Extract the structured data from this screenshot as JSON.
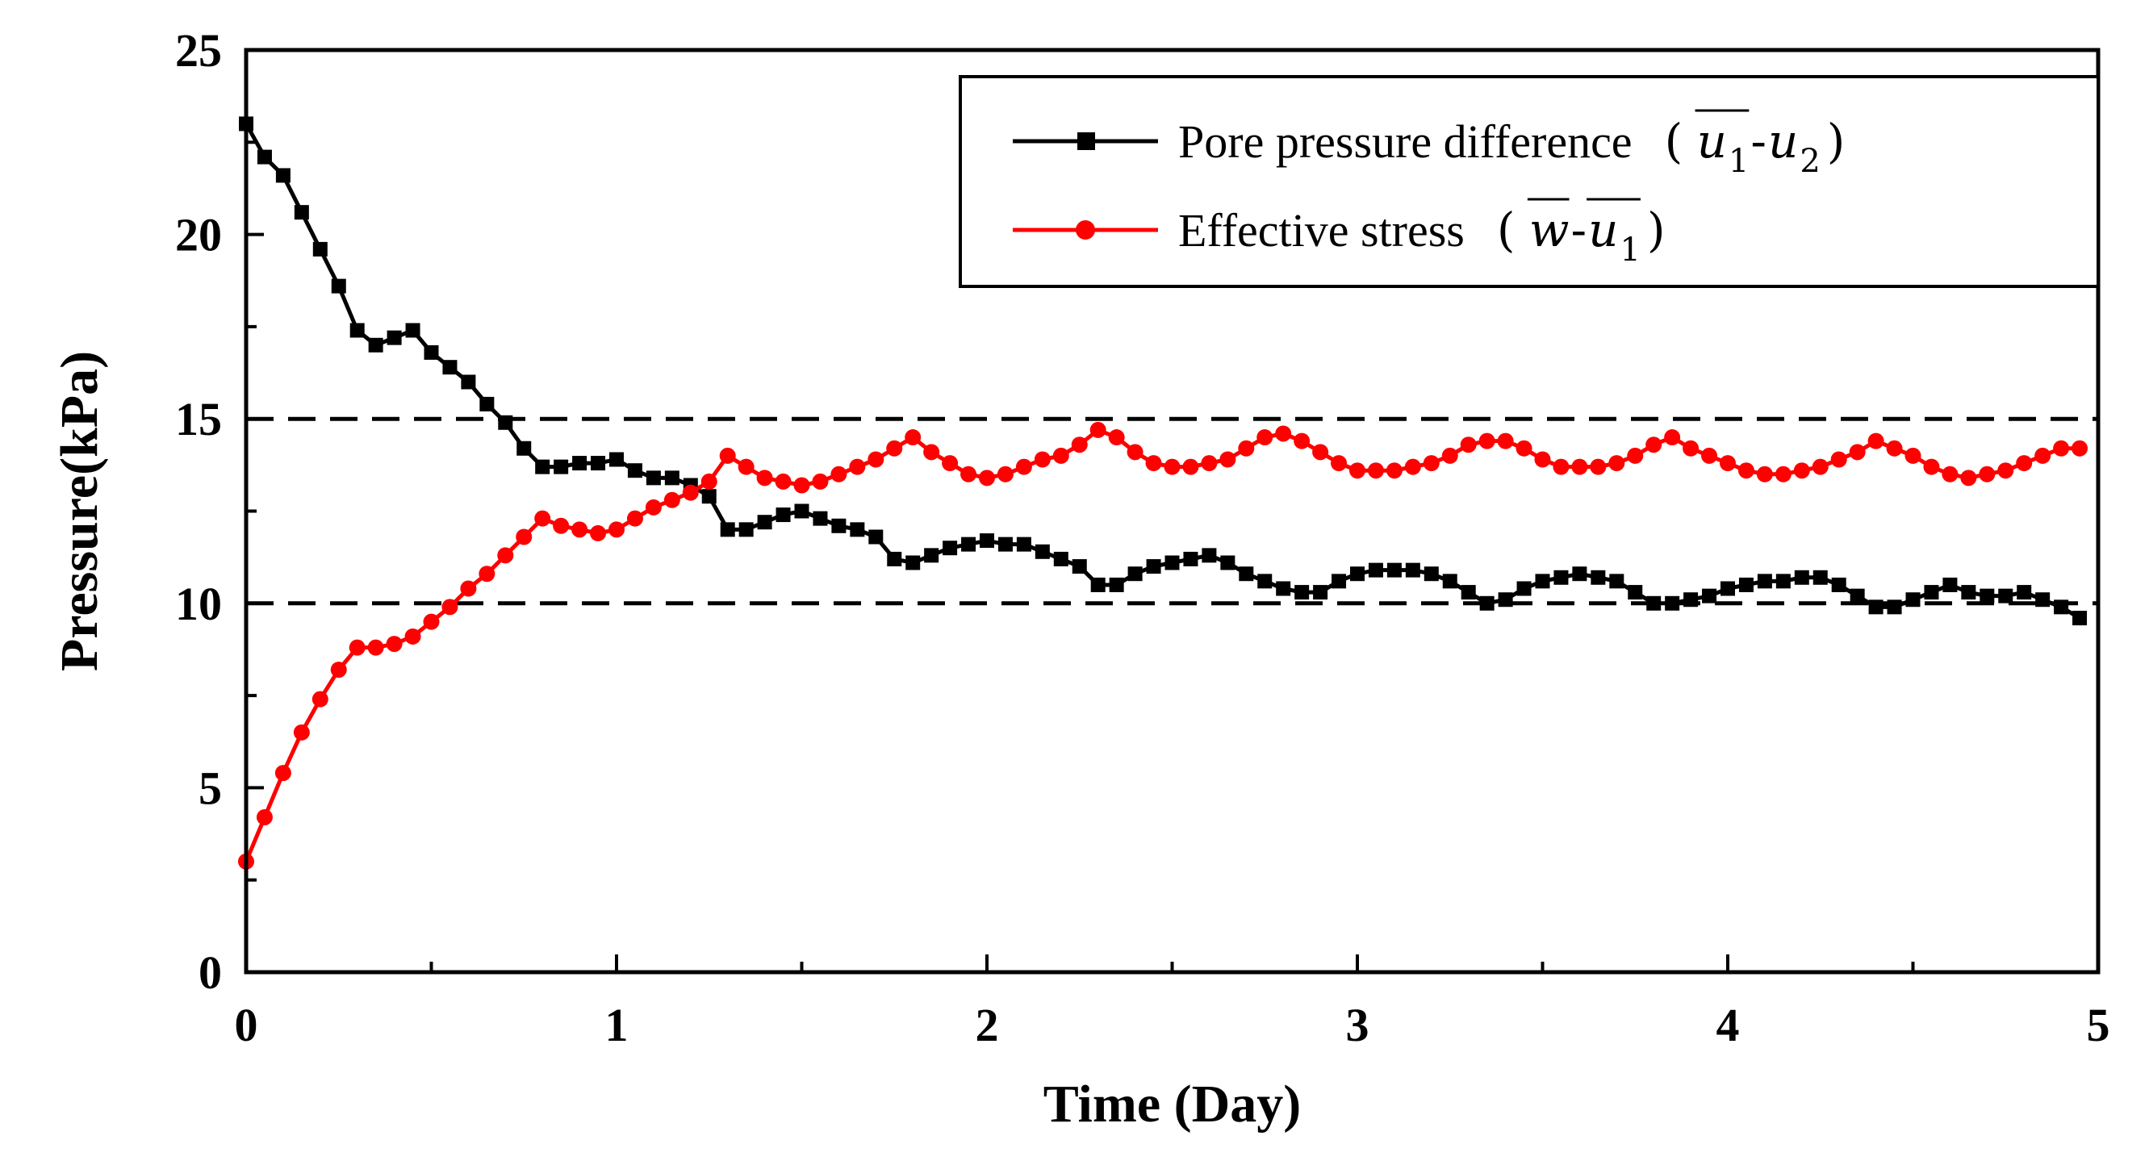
{
  "chart_data": {
    "type": "line",
    "title": "",
    "xlabel": "Time (Day)",
    "ylabel": "Pressure(kPa)",
    "xlim": [
      0,
      5
    ],
    "ylim": [
      0,
      25
    ],
    "x_ticks": [
      0,
      1,
      2,
      3,
      4,
      5
    ],
    "y_ticks": [
      0,
      5,
      10,
      15,
      20,
      25
    ],
    "x_tick_labels": [
      "0",
      "1",
      "2",
      "3",
      "4",
      "5"
    ],
    "y_tick_labels": [
      "0",
      "5",
      "10",
      "15",
      "20",
      "25"
    ],
    "reference_lines": [
      {
        "y": 15,
        "style": "dashed",
        "color": "#000000"
      },
      {
        "y": 10,
        "style": "dashed",
        "color": "#000000"
      }
    ],
    "legend_position": "top-right",
    "series": [
      {
        "name": "Pore pressure difference",
        "legend_label": "Pore pressure difference",
        "legend_formula": {
          "open": "(",
          "sym1": "u",
          "sub1": "1",
          "dash": "-",
          "sym2": "u",
          "sub2": "2",
          "close": ")"
        },
        "color": "#000000",
        "marker": "square",
        "x": [
          0.0,
          0.05,
          0.1,
          0.15,
          0.2,
          0.25,
          0.3,
          0.35,
          0.4,
          0.45,
          0.5,
          0.55,
          0.6,
          0.65,
          0.7,
          0.75,
          0.8,
          0.85,
          0.9,
          0.95,
          1.0,
          1.05,
          1.1,
          1.15,
          1.2,
          1.25,
          1.3,
          1.35,
          1.4,
          1.45,
          1.5,
          1.55,
          1.6,
          1.65,
          1.7,
          1.75,
          1.8,
          1.85,
          1.9,
          1.95,
          2.0,
          2.05,
          2.1,
          2.15,
          2.2,
          2.25,
          2.3,
          2.35,
          2.4,
          2.45,
          2.5,
          2.55,
          2.6,
          2.65,
          2.7,
          2.75,
          2.8,
          2.85,
          2.9,
          2.95,
          3.0,
          3.05,
          3.1,
          3.15,
          3.2,
          3.25,
          3.3,
          3.35,
          3.4,
          3.45,
          3.5,
          3.55,
          3.6,
          3.65,
          3.7,
          3.75,
          3.8,
          3.85,
          3.9,
          3.95,
          4.0,
          4.05,
          4.1,
          4.15,
          4.2,
          4.25,
          4.3,
          4.35,
          4.4,
          4.45,
          4.5,
          4.55,
          4.6,
          4.65,
          4.7,
          4.75,
          4.8,
          4.85,
          4.9,
          4.95
        ],
        "values": [
          23.0,
          22.1,
          21.6,
          20.6,
          19.6,
          18.6,
          17.4,
          17.0,
          17.2,
          17.4,
          16.8,
          16.4,
          16.0,
          15.4,
          14.9,
          14.2,
          13.7,
          13.7,
          13.8,
          13.8,
          13.9,
          13.6,
          13.4,
          13.4,
          13.2,
          12.9,
          12.0,
          12.0,
          12.2,
          12.4,
          12.5,
          12.3,
          12.1,
          12.0,
          11.8,
          11.2,
          11.1,
          11.3,
          11.5,
          11.6,
          11.7,
          11.6,
          11.6,
          11.4,
          11.2,
          11.0,
          10.5,
          10.5,
          10.8,
          11.0,
          11.1,
          11.2,
          11.3,
          11.1,
          10.8,
          10.6,
          10.4,
          10.3,
          10.3,
          10.6,
          10.8,
          10.9,
          10.9,
          10.9,
          10.8,
          10.6,
          10.3,
          10.0,
          10.1,
          10.4,
          10.6,
          10.7,
          10.8,
          10.7,
          10.6,
          10.3,
          10.0,
          10.0,
          10.1,
          10.2,
          10.4,
          10.5,
          10.6,
          10.6,
          10.7,
          10.7,
          10.5,
          10.2,
          9.9,
          9.9,
          10.1,
          10.3,
          10.5,
          10.3,
          10.2,
          10.2,
          10.3,
          10.1,
          9.9,
          9.6
        ]
      },
      {
        "name": "Effective stress",
        "legend_label": "Effective stress",
        "legend_formula": {
          "open": "(",
          "sym1": "w",
          "sub1": "",
          "dash": "-",
          "sym2": "u",
          "sub2": "1",
          "close": ")"
        },
        "color": "#ff0000",
        "marker": "circle",
        "x": [
          0.0,
          0.05,
          0.1,
          0.15,
          0.2,
          0.25,
          0.3,
          0.35,
          0.4,
          0.45,
          0.5,
          0.55,
          0.6,
          0.65,
          0.7,
          0.75,
          0.8,
          0.85,
          0.9,
          0.95,
          1.0,
          1.05,
          1.1,
          1.15,
          1.2,
          1.25,
          1.3,
          1.35,
          1.4,
          1.45,
          1.5,
          1.55,
          1.6,
          1.65,
          1.7,
          1.75,
          1.8,
          1.85,
          1.9,
          1.95,
          2.0,
          2.05,
          2.1,
          2.15,
          2.2,
          2.25,
          2.3,
          2.35,
          2.4,
          2.45,
          2.5,
          2.55,
          2.6,
          2.65,
          2.7,
          2.75,
          2.8,
          2.85,
          2.9,
          2.95,
          3.0,
          3.05,
          3.1,
          3.15,
          3.2,
          3.25,
          3.3,
          3.35,
          3.4,
          3.45,
          3.5,
          3.55,
          3.6,
          3.65,
          3.7,
          3.75,
          3.8,
          3.85,
          3.9,
          3.95,
          4.0,
          4.05,
          4.1,
          4.15,
          4.2,
          4.25,
          4.3,
          4.35,
          4.4,
          4.45,
          4.5,
          4.55,
          4.6,
          4.65,
          4.7,
          4.75,
          4.8,
          4.85,
          4.9,
          4.95
        ],
        "values": [
          3.0,
          4.2,
          5.4,
          6.5,
          7.4,
          8.2,
          8.8,
          8.8,
          8.9,
          9.1,
          9.5,
          9.9,
          10.4,
          10.8,
          11.3,
          11.8,
          12.3,
          12.1,
          12.0,
          11.9,
          12.0,
          12.3,
          12.6,
          12.8,
          13.0,
          13.3,
          14.0,
          13.7,
          13.4,
          13.3,
          13.2,
          13.3,
          13.5,
          13.7,
          13.9,
          14.2,
          14.5,
          14.1,
          13.8,
          13.5,
          13.4,
          13.5,
          13.7,
          13.9,
          14.0,
          14.3,
          14.7,
          14.5,
          14.1,
          13.8,
          13.7,
          13.7,
          13.8,
          13.9,
          14.2,
          14.5,
          14.6,
          14.4,
          14.1,
          13.8,
          13.6,
          13.6,
          13.6,
          13.7,
          13.8,
          14.0,
          14.3,
          14.4,
          14.4,
          14.2,
          13.9,
          13.7,
          13.7,
          13.7,
          13.8,
          14.0,
          14.3,
          14.5,
          14.2,
          14.0,
          13.8,
          13.6,
          13.5,
          13.5,
          13.6,
          13.7,
          13.9,
          14.1,
          14.4,
          14.2,
          14.0,
          13.7,
          13.5,
          13.4,
          13.5,
          13.6,
          13.8,
          14.0,
          14.2,
          14.2
        ]
      }
    ]
  }
}
